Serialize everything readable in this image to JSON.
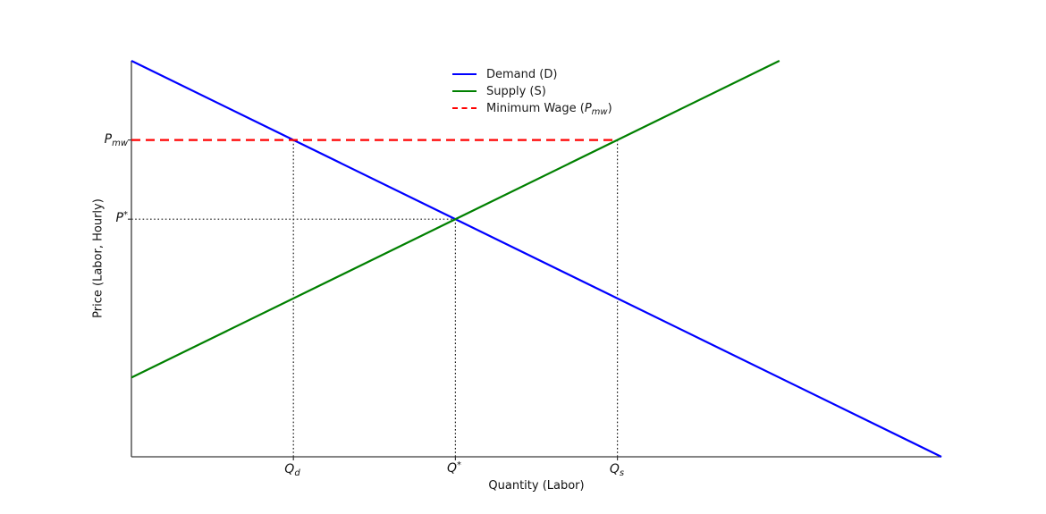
{
  "figure": {
    "background": "#ffffff",
    "xlabel": "Quantity (Labor)",
    "ylabel": "Price (Labor, Hourly)"
  },
  "axis_labels": {
    "p_mw": {
      "base": "P",
      "sub": "mw"
    },
    "p_star": {
      "base": "P",
      "sup": "*"
    },
    "q_d": {
      "base": "Q",
      "sub": "d"
    },
    "q_star": {
      "base": "Q",
      "sup": "*"
    },
    "q_s": {
      "base": "Q",
      "sub": "s"
    }
  },
  "legend": {
    "frame": false,
    "items": [
      {
        "label": "Demand (D)",
        "color": "#0000ff",
        "style": "solid"
      },
      {
        "label": "Supply (S)",
        "color": "#008000",
        "style": "solid"
      },
      {
        "label_pre": "Minimum Wage (",
        "label_math_base": "P",
        "label_math_sub": "mw",
        "label_post": ")",
        "color": "#ff0000",
        "style": "dashed"
      }
    ]
  },
  "chart_data": {
    "type": "line",
    "title": "",
    "xlabel": "Quantity (Labor)",
    "ylabel": "Price (Labor, Hourly)",
    "xlim": [
      0,
      10
    ],
    "ylim": [
      0,
      10
    ],
    "grid": false,
    "legend_position": "upper center inside, frameless",
    "axis_color": "#3a3a3a",
    "guide_color": "#1a1a1a",
    "series": [
      {
        "name": "Demand (D)",
        "color": "#0000ff",
        "style": "solid",
        "x": [
          0,
          10
        ],
        "y": [
          10,
          0
        ]
      },
      {
        "name": "Supply (S)",
        "color": "#008000",
        "style": "solid",
        "x": [
          0,
          8
        ],
        "y": [
          2,
          10
        ]
      },
      {
        "name": "Minimum Wage (Pmw)",
        "color": "#ff0000",
        "style": "dashed",
        "x": [
          0,
          6
        ],
        "y": [
          8,
          8
        ]
      }
    ],
    "guides": [
      {
        "name": "p-star-guide-line",
        "style": "dotted",
        "x": [
          0,
          4
        ],
        "y": [
          6,
          6
        ]
      },
      {
        "name": "q-d-guide-line",
        "style": "dotted",
        "x": [
          2,
          2
        ],
        "y": [
          0,
          8
        ]
      },
      {
        "name": "q-star-guide-line",
        "style": "dotted",
        "x": [
          4,
          4
        ],
        "y": [
          0,
          6
        ]
      },
      {
        "name": "q-s-guide-line",
        "style": "dotted",
        "x": [
          6,
          6
        ],
        "y": [
          0,
          8
        ]
      }
    ],
    "key_values": {
      "P_mw": 8,
      "P_star": 6,
      "Q_d": 2,
      "Q_star": 4,
      "Q_s": 6
    },
    "xticks": [
      2,
      4,
      6
    ],
    "yticks": [
      6,
      8
    ]
  }
}
